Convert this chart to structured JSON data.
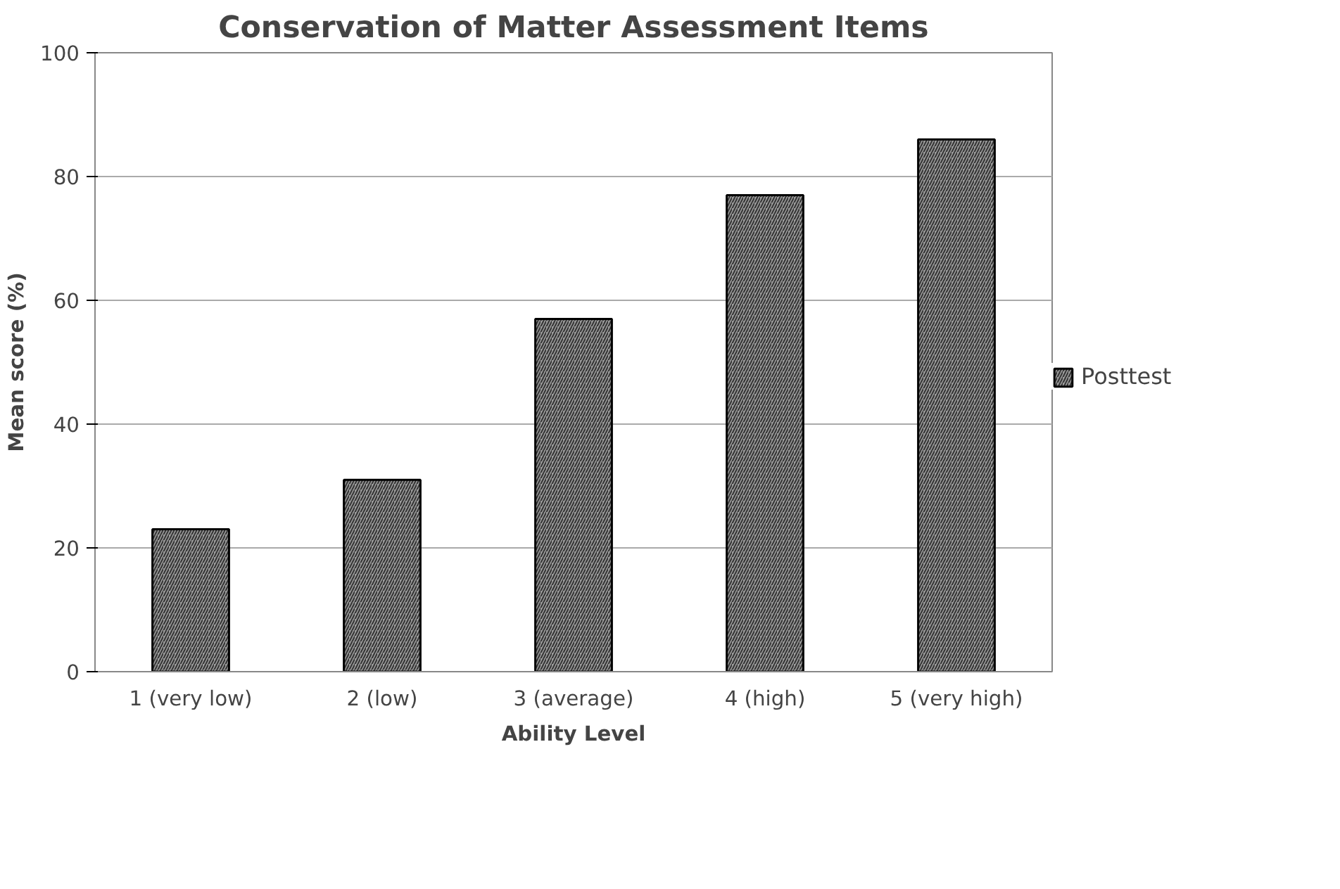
{
  "chart_data": {
    "type": "bar",
    "title": "Conservation of Matter Assessment Items",
    "xlabel": "Ability Level",
    "ylabel": "Mean score (%)",
    "categories": [
      "1 (very low)",
      "2 (low)",
      "3 (average)",
      "4 (high)",
      "5 (very high)"
    ],
    "series": [
      {
        "name": "Posttest",
        "color": "#9a9a9a",
        "values": [
          23,
          31,
          57,
          77,
          86
        ]
      }
    ],
    "ylim": [
      0,
      100
    ],
    "yticks": [
      0,
      20,
      40,
      60,
      80,
      100
    ],
    "grid": "y",
    "legend": "right"
  }
}
